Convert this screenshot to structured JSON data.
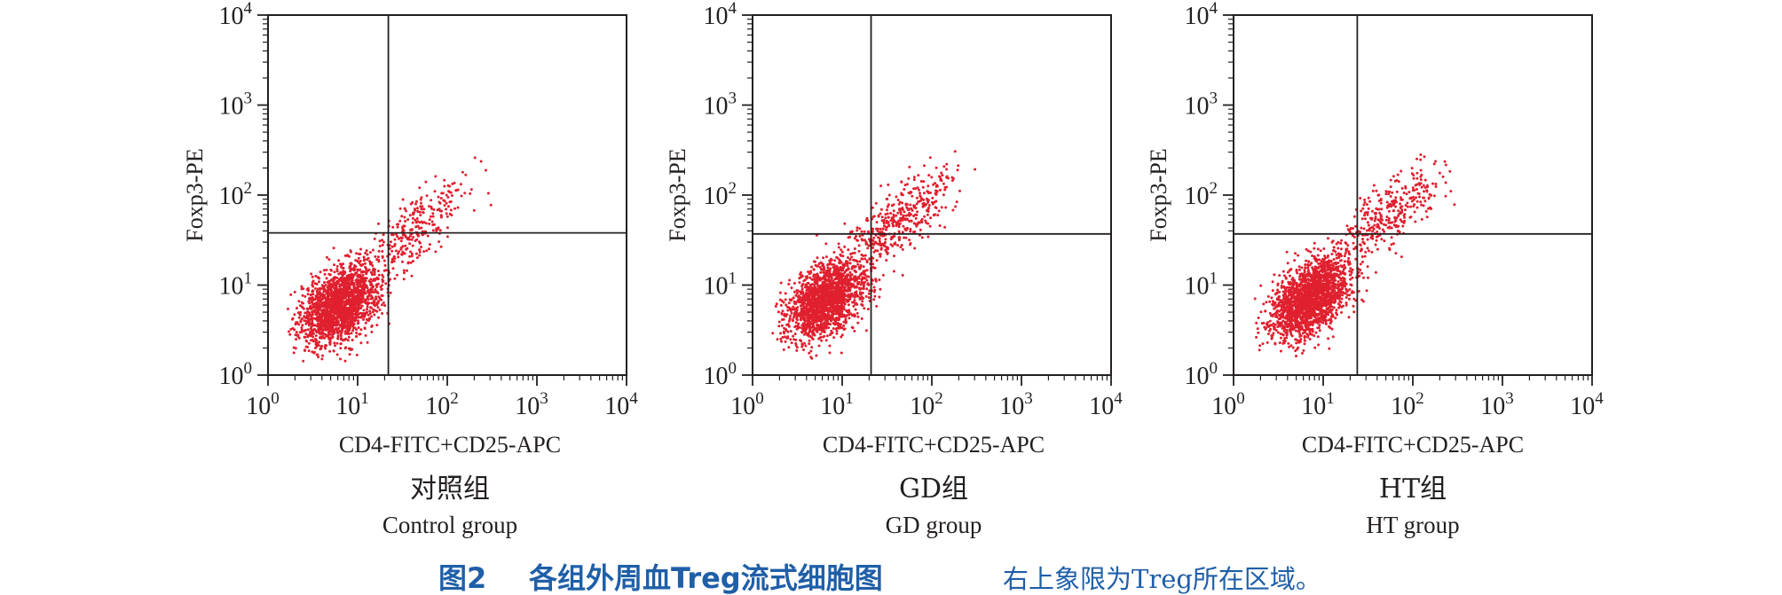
{
  "figure": {
    "label": "图2",
    "title": "各组外周血Treg流式细胞图",
    "note": "右上象限为Treg所在区域。",
    "colors": {
      "dots": "#e0202f",
      "axes": "#231f20",
      "caption": "#1f5fa8"
    }
  },
  "chart_data": [
    {
      "type": "scatter",
      "group_cn": "对照组",
      "group_en": "Control group",
      "xlabel": "CD4-FITC+CD25-APC",
      "ylabel": "Foxp3-PE",
      "x_scale": "log",
      "y_scale": "log",
      "xlim": [
        1,
        10000
      ],
      "ylim": [
        1,
        10000
      ],
      "x_ticks": [
        "10^0",
        "10^1",
        "10^2",
        "10^3",
        "10^4"
      ],
      "y_ticks": [
        "10^0",
        "10^1",
        "10^2",
        "10^3",
        "10^4"
      ],
      "quadrant_gate": {
        "x": 22,
        "y": 38
      },
      "populations": [
        {
          "center_log": [
            0.8,
            0.78
          ],
          "spread_log": [
            0.22,
            0.22
          ],
          "correlation": 0.4,
          "count": 1900
        },
        {
          "center_log": [
            1.65,
            1.62
          ],
          "spread_log": [
            0.28,
            0.28
          ],
          "correlation": 0.75,
          "count": 300
        }
      ],
      "grid": false
    },
    {
      "type": "scatter",
      "group_cn": "GD组",
      "group_en": "GD group",
      "xlabel": "CD4-FITC+CD25-APC",
      "ylabel": "Foxp3-PE",
      "x_scale": "log",
      "y_scale": "log",
      "xlim": [
        1,
        10000
      ],
      "ylim": [
        1,
        10000
      ],
      "x_ticks": [
        "10^0",
        "10^1",
        "10^2",
        "10^3",
        "10^4"
      ],
      "y_ticks": [
        "10^0",
        "10^1",
        "10^2",
        "10^3",
        "10^4"
      ],
      "quadrant_gate": {
        "x": 21,
        "y": 37
      },
      "populations": [
        {
          "center_log": [
            0.82,
            0.83
          ],
          "spread_log": [
            0.22,
            0.22
          ],
          "correlation": 0.45,
          "count": 1800
        },
        {
          "center_log": [
            1.6,
            1.68
          ],
          "spread_log": [
            0.32,
            0.3
          ],
          "correlation": 0.75,
          "count": 450
        }
      ],
      "grid": false
    },
    {
      "type": "scatter",
      "group_cn": "HT组",
      "group_en": "HT group",
      "xlabel": "CD4-FITC+CD25-APC",
      "ylabel": "Foxp3-PE",
      "x_scale": "log",
      "y_scale": "log",
      "xlim": [
        1,
        10000
      ],
      "ylim": [
        1,
        10000
      ],
      "x_ticks": [
        "10^0",
        "10^1",
        "10^2",
        "10^3",
        "10^4"
      ],
      "y_ticks": [
        "10^0",
        "10^1",
        "10^2",
        "10^3",
        "10^4"
      ],
      "quadrant_gate": {
        "x": 24,
        "y": 37
      },
      "populations": [
        {
          "center_log": [
            0.85,
            0.85
          ],
          "spread_log": [
            0.22,
            0.22
          ],
          "correlation": 0.45,
          "count": 2000
        },
        {
          "center_log": [
            1.72,
            1.78
          ],
          "spread_log": [
            0.28,
            0.26
          ],
          "correlation": 0.7,
          "count": 350
        }
      ],
      "grid": false
    }
  ]
}
